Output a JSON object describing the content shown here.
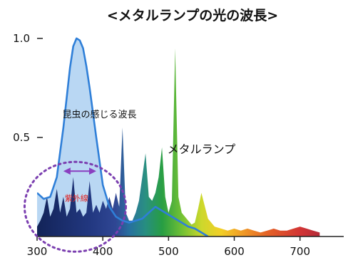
{
  "chart_data": {
    "type": "area",
    "title": "<メタルランプの光の波長>",
    "xlabel": "",
    "ylabel": "",
    "xlim": [
      300,
      760
    ],
    "ylim": [
      0,
      1.05
    ],
    "x_ticks": [
      "300",
      "400",
      "500",
      "600",
      "700"
    ],
    "y_ticks": [
      "0.5",
      "1.0"
    ],
    "series": [
      {
        "name": "昆虫の感じる波長",
        "color": "#2f7fd8",
        "fill": "#b9d7f3",
        "x": [
          300,
          310,
          320,
          330,
          340,
          350,
          355,
          360,
          365,
          370,
          375,
          380,
          390,
          400,
          410,
          420,
          430,
          440,
          450,
          460,
          470,
          480,
          490,
          500,
          510,
          520,
          530,
          540,
          550,
          560
        ],
        "y": [
          0.22,
          0.19,
          0.2,
          0.3,
          0.55,
          0.85,
          0.96,
          1.0,
          0.99,
          0.95,
          0.86,
          0.75,
          0.5,
          0.26,
          0.15,
          0.1,
          0.08,
          0.07,
          0.08,
          0.09,
          0.12,
          0.15,
          0.13,
          0.11,
          0.09,
          0.07,
          0.05,
          0.04,
          0.02,
          0.0
        ]
      },
      {
        "name": "メタルランプ",
        "x": [
          300,
          305,
          310,
          315,
          320,
          325,
          330,
          335,
          340,
          345,
          350,
          355,
          360,
          365,
          370,
          375,
          380,
          385,
          390,
          395,
          400,
          405,
          410,
          415,
          420,
          425,
          430,
          435,
          440,
          445,
          450,
          455,
          460,
          465,
          470,
          475,
          480,
          485,
          490,
          495,
          500,
          505,
          510,
          515,
          520,
          525,
          530,
          535,
          540,
          545,
          550,
          560,
          570,
          580,
          590,
          600,
          610,
          620,
          630,
          640,
          650,
          660,
          670,
          680,
          690,
          700,
          710,
          720,
          730
        ],
        "y": [
          0.05,
          0.08,
          0.12,
          0.2,
          0.1,
          0.14,
          0.24,
          0.12,
          0.2,
          0.1,
          0.14,
          0.3,
          0.12,
          0.14,
          0.1,
          0.12,
          0.28,
          0.12,
          0.16,
          0.12,
          0.18,
          0.14,
          0.2,
          0.14,
          0.22,
          0.15,
          0.55,
          0.12,
          0.08,
          0.08,
          0.12,
          0.18,
          0.3,
          0.42,
          0.2,
          0.18,
          0.22,
          0.3,
          0.45,
          0.2,
          0.12,
          0.18,
          0.95,
          0.2,
          0.12,
          0.1,
          0.08,
          0.06,
          0.07,
          0.14,
          0.22,
          0.09,
          0.05,
          0.04,
          0.03,
          0.04,
          0.03,
          0.04,
          0.03,
          0.02,
          0.03,
          0.04,
          0.03,
          0.03,
          0.04,
          0.05,
          0.04,
          0.03,
          0.02
        ]
      }
    ],
    "annotations": [
      {
        "text": "昆虫の感じる波長",
        "x": 395,
        "y": 0.6
      },
      {
        "text": "メタルランプ",
        "x": 550,
        "y": 0.42
      },
      {
        "text": "紫外線",
        "x": 360,
        "y": 0.18,
        "color": "#e02020"
      }
    ],
    "grid": false,
    "legend": "none"
  }
}
